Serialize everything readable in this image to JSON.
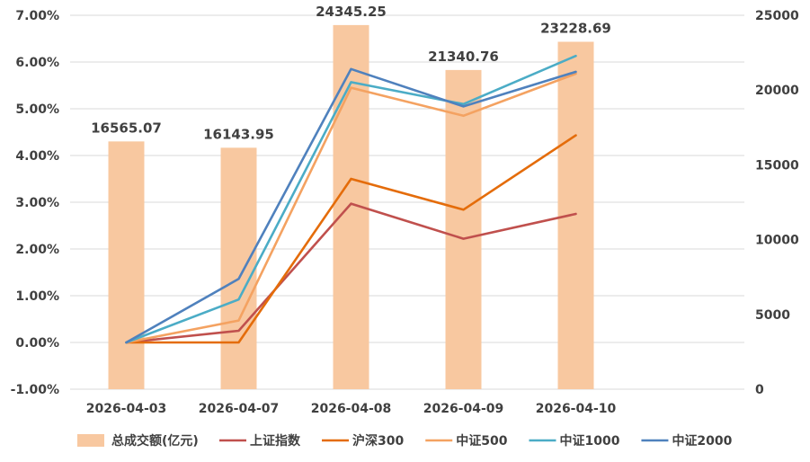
{
  "chart_data": {
    "type": "bar+line",
    "categories": [
      "2026-04-03",
      "2026-04-07",
      "2026-04-08",
      "2026-04-09",
      "2026-04-10"
    ],
    "bars": {
      "name": "总成交额(亿元)",
      "axis": "right",
      "color": "#f8c8a0",
      "values": [
        16565.07,
        16143.95,
        24345.25,
        21340.76,
        23228.69
      ],
      "labels": [
        "16565.07",
        "16143.95",
        "24345.25",
        "21340.76",
        "23228.69"
      ]
    },
    "series": [
      {
        "name": "上证指数",
        "axis": "left",
        "color": "#c0504d",
        "values": [
          0.0,
          0.25,
          2.97,
          2.22,
          2.75
        ]
      },
      {
        "name": "沪深300",
        "axis": "left",
        "color": "#e46c0a",
        "values": [
          0.0,
          0.0,
          3.5,
          2.84,
          4.43
        ]
      },
      {
        "name": "中证500",
        "axis": "left",
        "color": "#f4a261",
        "values": [
          0.0,
          0.47,
          5.45,
          4.85,
          5.75
        ]
      },
      {
        "name": "中证1000",
        "axis": "left",
        "color": "#4bacc6",
        "values": [
          0.0,
          0.92,
          5.57,
          5.1,
          6.13
        ]
      },
      {
        "name": "中证2000",
        "axis": "left",
        "color": "#4f81bd",
        "values": [
          0.0,
          1.36,
          5.85,
          5.05,
          5.79
        ]
      }
    ],
    "y_left": {
      "min": -1,
      "max": 7,
      "ticks": [
        "-1.00%",
        "0.00%",
        "1.00%",
        "2.00%",
        "3.00%",
        "4.00%",
        "5.00%",
        "6.00%",
        "7.00%"
      ]
    },
    "y_right": {
      "min": 0,
      "max": 25000,
      "ticks": [
        "0",
        "5000",
        "10000",
        "15000",
        "20000",
        "25000"
      ]
    },
    "grid": true,
    "legend_position": "bottom",
    "x_slots": 6
  }
}
